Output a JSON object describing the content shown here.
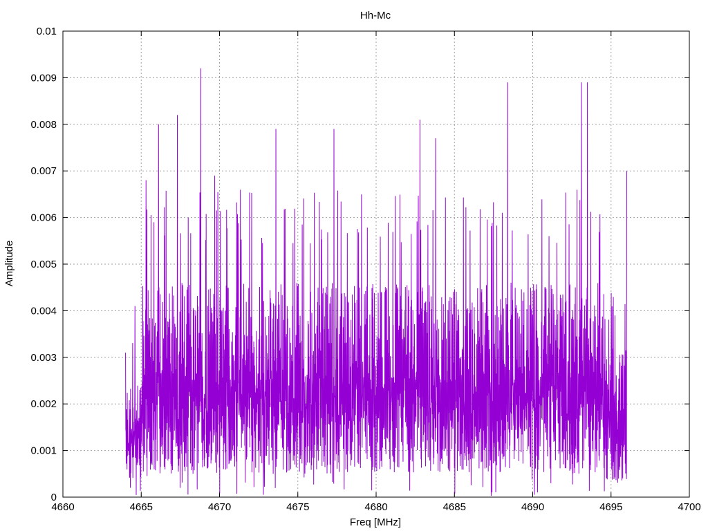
{
  "chart_data": {
    "type": "line",
    "title": "Hh-Mc",
    "xlabel": "Freq [MHz]",
    "ylabel": "Amplitude",
    "xlim": [
      4660,
      4700
    ],
    "ylim": [
      0,
      0.01
    ],
    "xticks": [
      "4660",
      "4665",
      "4670",
      "4675",
      "4680",
      "4685",
      "4690",
      "4695",
      "4700"
    ],
    "yticks": [
      "0",
      "0.001",
      "0.002",
      "0.003",
      "0.004",
      "0.005",
      "0.006",
      "0.007",
      "0.008",
      "0.009",
      "0.01"
    ],
    "grid": true,
    "line_color": "#9400d3",
    "peaks": [
      {
        "x": 4664.0,
        "y": 0.0031
      },
      {
        "x": 4664.6,
        "y": 0.0041
      },
      {
        "x": 4665.3,
        "y": 0.0068
      },
      {
        "x": 4666.1,
        "y": 0.008
      },
      {
        "x": 4667.3,
        "y": 0.0082
      },
      {
        "x": 4668.8,
        "y": 0.0092
      },
      {
        "x": 4669.7,
        "y": 0.0069
      },
      {
        "x": 4673.6,
        "y": 0.0079
      },
      {
        "x": 4677.3,
        "y": 0.0079
      },
      {
        "x": 4682.8,
        "y": 0.0081
      },
      {
        "x": 4683.8,
        "y": 0.0077
      },
      {
        "x": 4688.4,
        "y": 0.0089
      },
      {
        "x": 4693.1,
        "y": 0.0089
      },
      {
        "x": 4693.5,
        "y": 0.0089
      },
      {
        "x": 4696.0,
        "y": 0.007
      }
    ],
    "minima": [
      {
        "x": 4664.3,
        "y": 0.0002
      },
      {
        "x": 4672.8,
        "y": 5e-05
      },
      {
        "x": 4687.4,
        "y": 0.0001
      },
      {
        "x": 4690.1,
        "y": 5e-05
      },
      {
        "x": 4690.3,
        "y": 0.0001
      }
    ],
    "series": [
      {
        "x_start": 4664.0,
        "x_end": 4696.0,
        "typical_range": [
          0.001,
          0.006
        ]
      }
    ]
  }
}
